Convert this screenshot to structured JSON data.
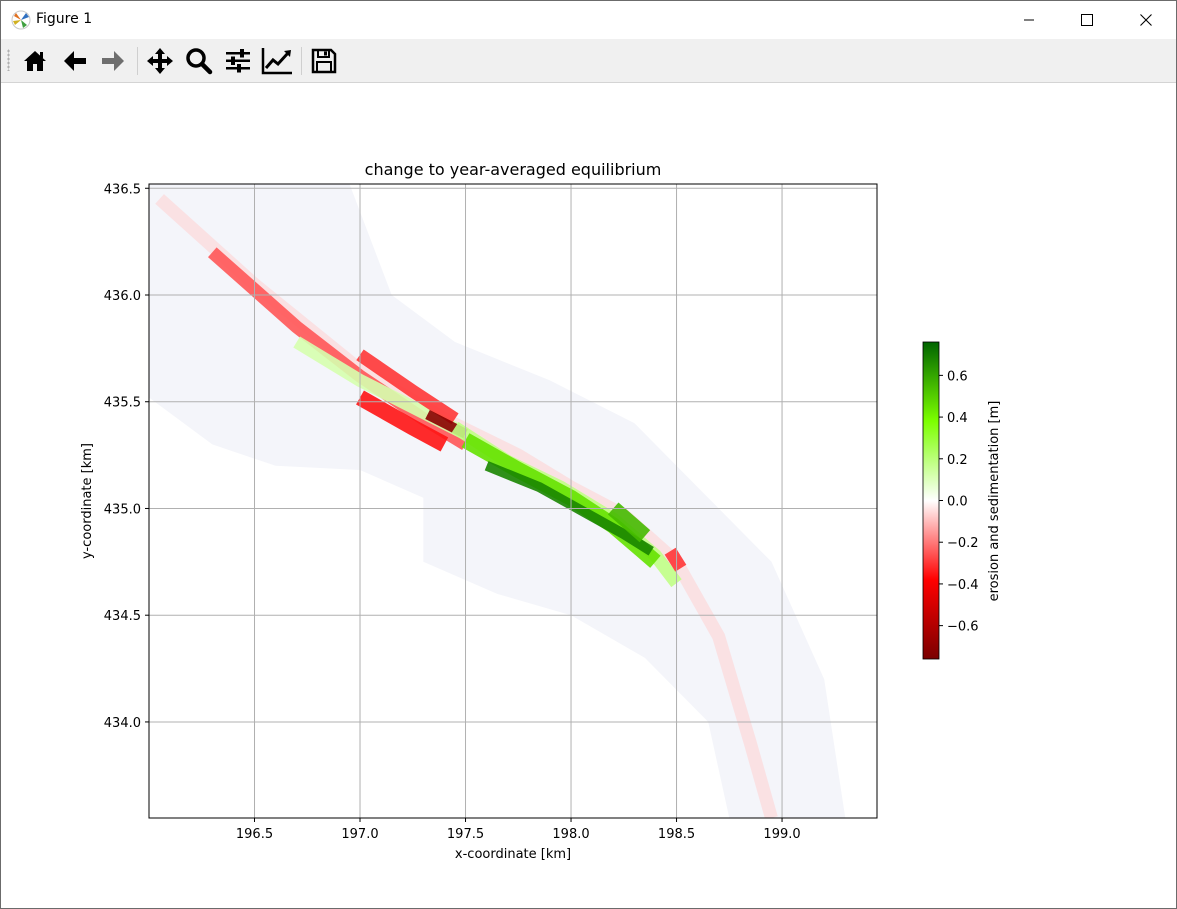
{
  "window": {
    "title": "Figure 1",
    "controls": [
      "minimize",
      "maximize",
      "close"
    ]
  },
  "toolbar": {
    "buttons": [
      {
        "name": "home",
        "icon": "home-icon"
      },
      {
        "name": "back",
        "icon": "arrow-left-icon"
      },
      {
        "name": "forward",
        "icon": "arrow-right-icon"
      },
      {
        "name": "pan",
        "icon": "move-icon"
      },
      {
        "name": "zoom",
        "icon": "magnifier-icon"
      },
      {
        "name": "configure-subplots",
        "icon": "sliders-icon"
      },
      {
        "name": "edit-axis",
        "icon": "line-chart-icon"
      },
      {
        "name": "save",
        "icon": "floppy-disk-icon"
      }
    ]
  },
  "chart_data": {
    "type": "heatmap",
    "title": "change to year-averaged equilibrium",
    "xlabel": "x-coordinate [km]",
    "ylabel": "y-coordinate [km]",
    "xlim": [
      196.0,
      199.45
    ],
    "ylim": [
      433.55,
      436.52
    ],
    "xticks": [
      "196.5",
      "197.0",
      "197.5",
      "198.0",
      "198.5",
      "199.0"
    ],
    "xtick_values": [
      196.5,
      197.0,
      197.5,
      198.0,
      198.5,
      199.0
    ],
    "yticks": [
      "434.0",
      "434.5",
      "435.0",
      "435.5",
      "436.0",
      "436.5"
    ],
    "ytick_values": [
      434.0,
      434.5,
      435.0,
      435.5,
      436.0,
      436.5
    ],
    "grid": true,
    "colorbar": {
      "label": "erosion and sedimentation [m]",
      "ticks": [
        "0.6",
        "0.4",
        "0.2",
        "0.0",
        "−0.2",
        "−0.4",
        "−0.6"
      ],
      "tick_values": [
        0.6,
        0.4,
        0.2,
        0.0,
        -0.2,
        -0.4,
        -0.6
      ],
      "range": [
        -0.76,
        0.76
      ],
      "colormap_stops": [
        "#7a0000",
        "#ff0000",
        "#ffffff",
        "#7cff00",
        "#006400"
      ]
    },
    "colors": {
      "background_domain": "#f4f5fa",
      "erosion": "#ff0000",
      "strong_erosion": "#b00000",
      "sedimentation": "#66dd00",
      "strong_sedimentation": "#0a6a0a"
    },
    "domain_outline_km": [
      [
        196.0,
        436.52
      ],
      [
        196.95,
        436.52
      ],
      [
        197.15,
        436.0
      ],
      [
        197.45,
        435.78
      ],
      [
        197.9,
        435.6
      ],
      [
        198.3,
        435.4
      ],
      [
        198.6,
        435.1
      ],
      [
        198.95,
        434.75
      ],
      [
        199.2,
        434.2
      ],
      [
        199.3,
        433.55
      ],
      [
        198.75,
        433.55
      ],
      [
        198.65,
        434.0
      ],
      [
        198.35,
        434.3
      ],
      [
        198.0,
        434.5
      ],
      [
        197.65,
        434.6
      ],
      [
        197.3,
        434.75
      ],
      [
        197.3,
        435.05
      ],
      [
        197.0,
        435.18
      ],
      [
        196.6,
        435.2
      ],
      [
        196.3,
        435.3
      ],
      [
        196.0,
        435.52
      ]
    ],
    "series": [
      {
        "values": [
          [
            196.05,
            436.45
          ],
          [
            196.5,
            436.05
          ],
          [
            197.0,
            435.65
          ],
          [
            197.4,
            435.42
          ],
          [
            197.75,
            435.25
          ],
          [
            198.0,
            435.1
          ],
          [
            198.25,
            434.97
          ],
          [
            198.5,
            434.75
          ],
          [
            198.7,
            434.4
          ],
          [
            198.85,
            433.9
          ],
          [
            198.95,
            433.55
          ]
        ],
        "level": -0.07
      },
      {
        "values": [
          [
            196.3,
            436.2
          ],
          [
            196.7,
            435.85
          ],
          [
            197.0,
            435.62
          ],
          [
            197.3,
            435.42
          ],
          [
            197.5,
            435.3
          ]
        ],
        "level": -0.25
      },
      {
        "values": [
          [
            196.7,
            435.78
          ],
          [
            197.0,
            435.6
          ],
          [
            197.3,
            435.45
          ],
          [
            197.5,
            435.35
          ]
        ],
        "level": 0.12
      },
      {
        "values": [
          [
            197.0,
            435.72
          ],
          [
            197.25,
            435.55
          ],
          [
            197.45,
            435.42
          ]
        ],
        "level": -0.3
      },
      {
        "values": [
          [
            197.32,
            435.44
          ],
          [
            197.5,
            435.35
          ]
        ],
        "level": -0.72
      },
      {
        "values": [
          [
            197.0,
            435.52
          ],
          [
            197.25,
            435.38
          ],
          [
            197.4,
            435.3
          ]
        ],
        "level": -0.35
      },
      {
        "values": [
          [
            197.45,
            435.38
          ],
          [
            197.7,
            435.22
          ],
          [
            197.95,
            435.1
          ],
          [
            198.2,
            434.95
          ],
          [
            198.4,
            434.78
          ],
          [
            198.5,
            434.65
          ]
        ],
        "level": 0.18
      },
      {
        "values": [
          [
            197.5,
            435.32
          ],
          [
            197.75,
            435.18
          ],
          [
            198.0,
            435.05
          ],
          [
            198.2,
            434.92
          ],
          [
            198.4,
            434.75
          ]
        ],
        "level": 0.45
      },
      {
        "values": [
          [
            197.6,
            435.2
          ],
          [
            197.85,
            435.1
          ],
          [
            198.05,
            434.99
          ],
          [
            198.25,
            434.88
          ],
          [
            198.38,
            434.8
          ]
        ],
        "level": 0.68
      },
      {
        "values": [
          [
            198.2,
            435.0
          ],
          [
            198.35,
            434.87
          ]
        ],
        "level": 0.55
      },
      {
        "values": [
          [
            198.47,
            434.8
          ],
          [
            198.52,
            434.72
          ]
        ],
        "level": -0.3
      }
    ]
  }
}
